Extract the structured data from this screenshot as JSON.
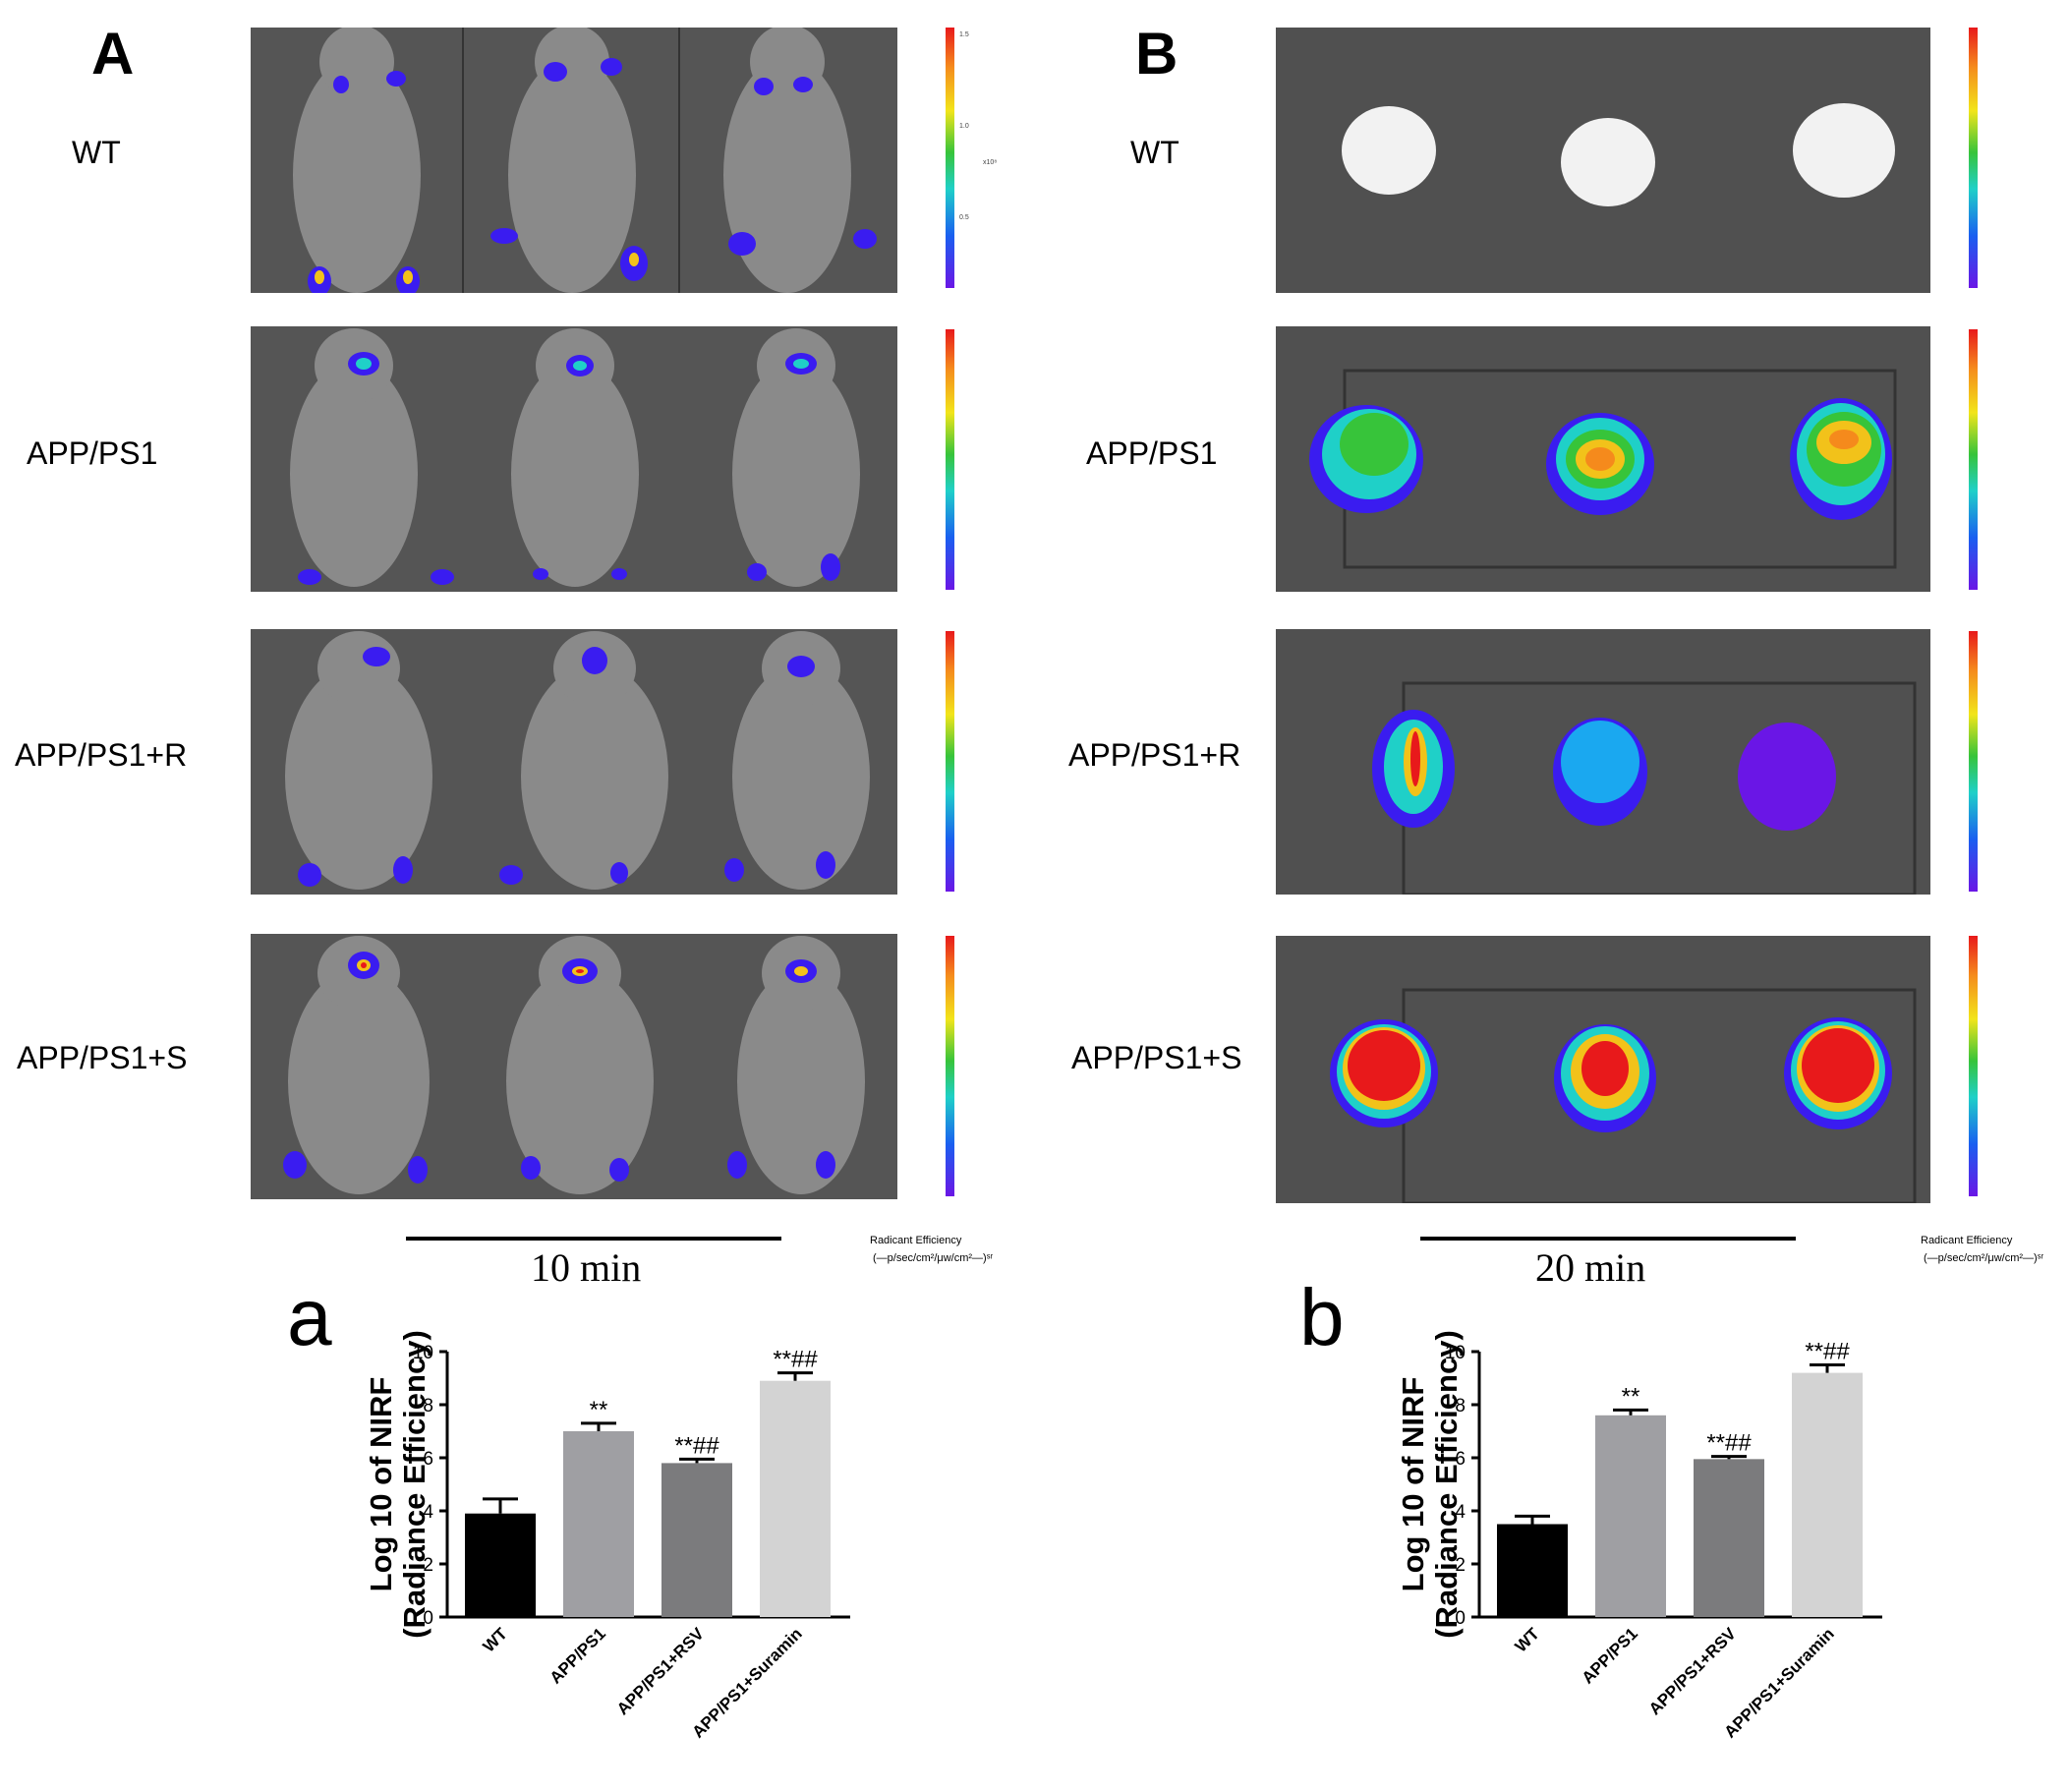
{
  "panels": {
    "A": "A",
    "B": "B",
    "a": "a",
    "b": "b"
  },
  "row_labels": [
    "WT",
    "APP/PS1",
    "APP/PS1+R",
    "APP/PS1+S"
  ],
  "time_labels": {
    "A": "10 min",
    "B": "20 min"
  },
  "colorbar": {
    "ticks": [
      "1.5",
      "1.0",
      "0.5"
    ],
    "unit": "x10⁸"
  },
  "legend": {
    "title": "Radicant Efficiency",
    "unit": "(—p/sec/cm²/μw/cm²—)ˢʳ"
  },
  "colors": {
    "wt": "#000000",
    "app": "#9f9fa3",
    "rsv": "#7b7b7d",
    "suramin": "#d3d3d3"
  },
  "chart_data": [
    {
      "type": "bar",
      "panel": "a",
      "categories": [
        "WT",
        "APP/PS1",
        "APP/PS1+RSV",
        "APP/PS1+Suramin"
      ],
      "values": [
        3.9,
        7.0,
        5.8,
        8.9
      ],
      "errors": [
        0.55,
        0.3,
        0.15,
        0.3
      ],
      "annotations": [
        "",
        "**",
        "**##",
        "**##"
      ],
      "ylabel_line1": "Log 10 of NIRF",
      "ylabel_line2": "(Radiance Efficiency)",
      "ylim": [
        0,
        10
      ],
      "yticks": [
        "0",
        "2",
        "4",
        "6",
        "8",
        "10"
      ]
    },
    {
      "type": "bar",
      "panel": "b",
      "categories": [
        "WT",
        "APP/PS1",
        "APP/PS1+RSV",
        "APP/PS1+Suramin"
      ],
      "values": [
        3.5,
        7.6,
        5.95,
        9.2
      ],
      "errors": [
        0.3,
        0.2,
        0.1,
        0.3
      ],
      "annotations": [
        "",
        "**",
        "**##",
        "**##"
      ],
      "ylabel_line1": "Log 10 of NIRF",
      "ylabel_line2": "(Radiance Efficiency)",
      "ylim": [
        0,
        10
      ],
      "yticks": [
        "0",
        "2",
        "4",
        "6",
        "8",
        "10"
      ]
    }
  ]
}
